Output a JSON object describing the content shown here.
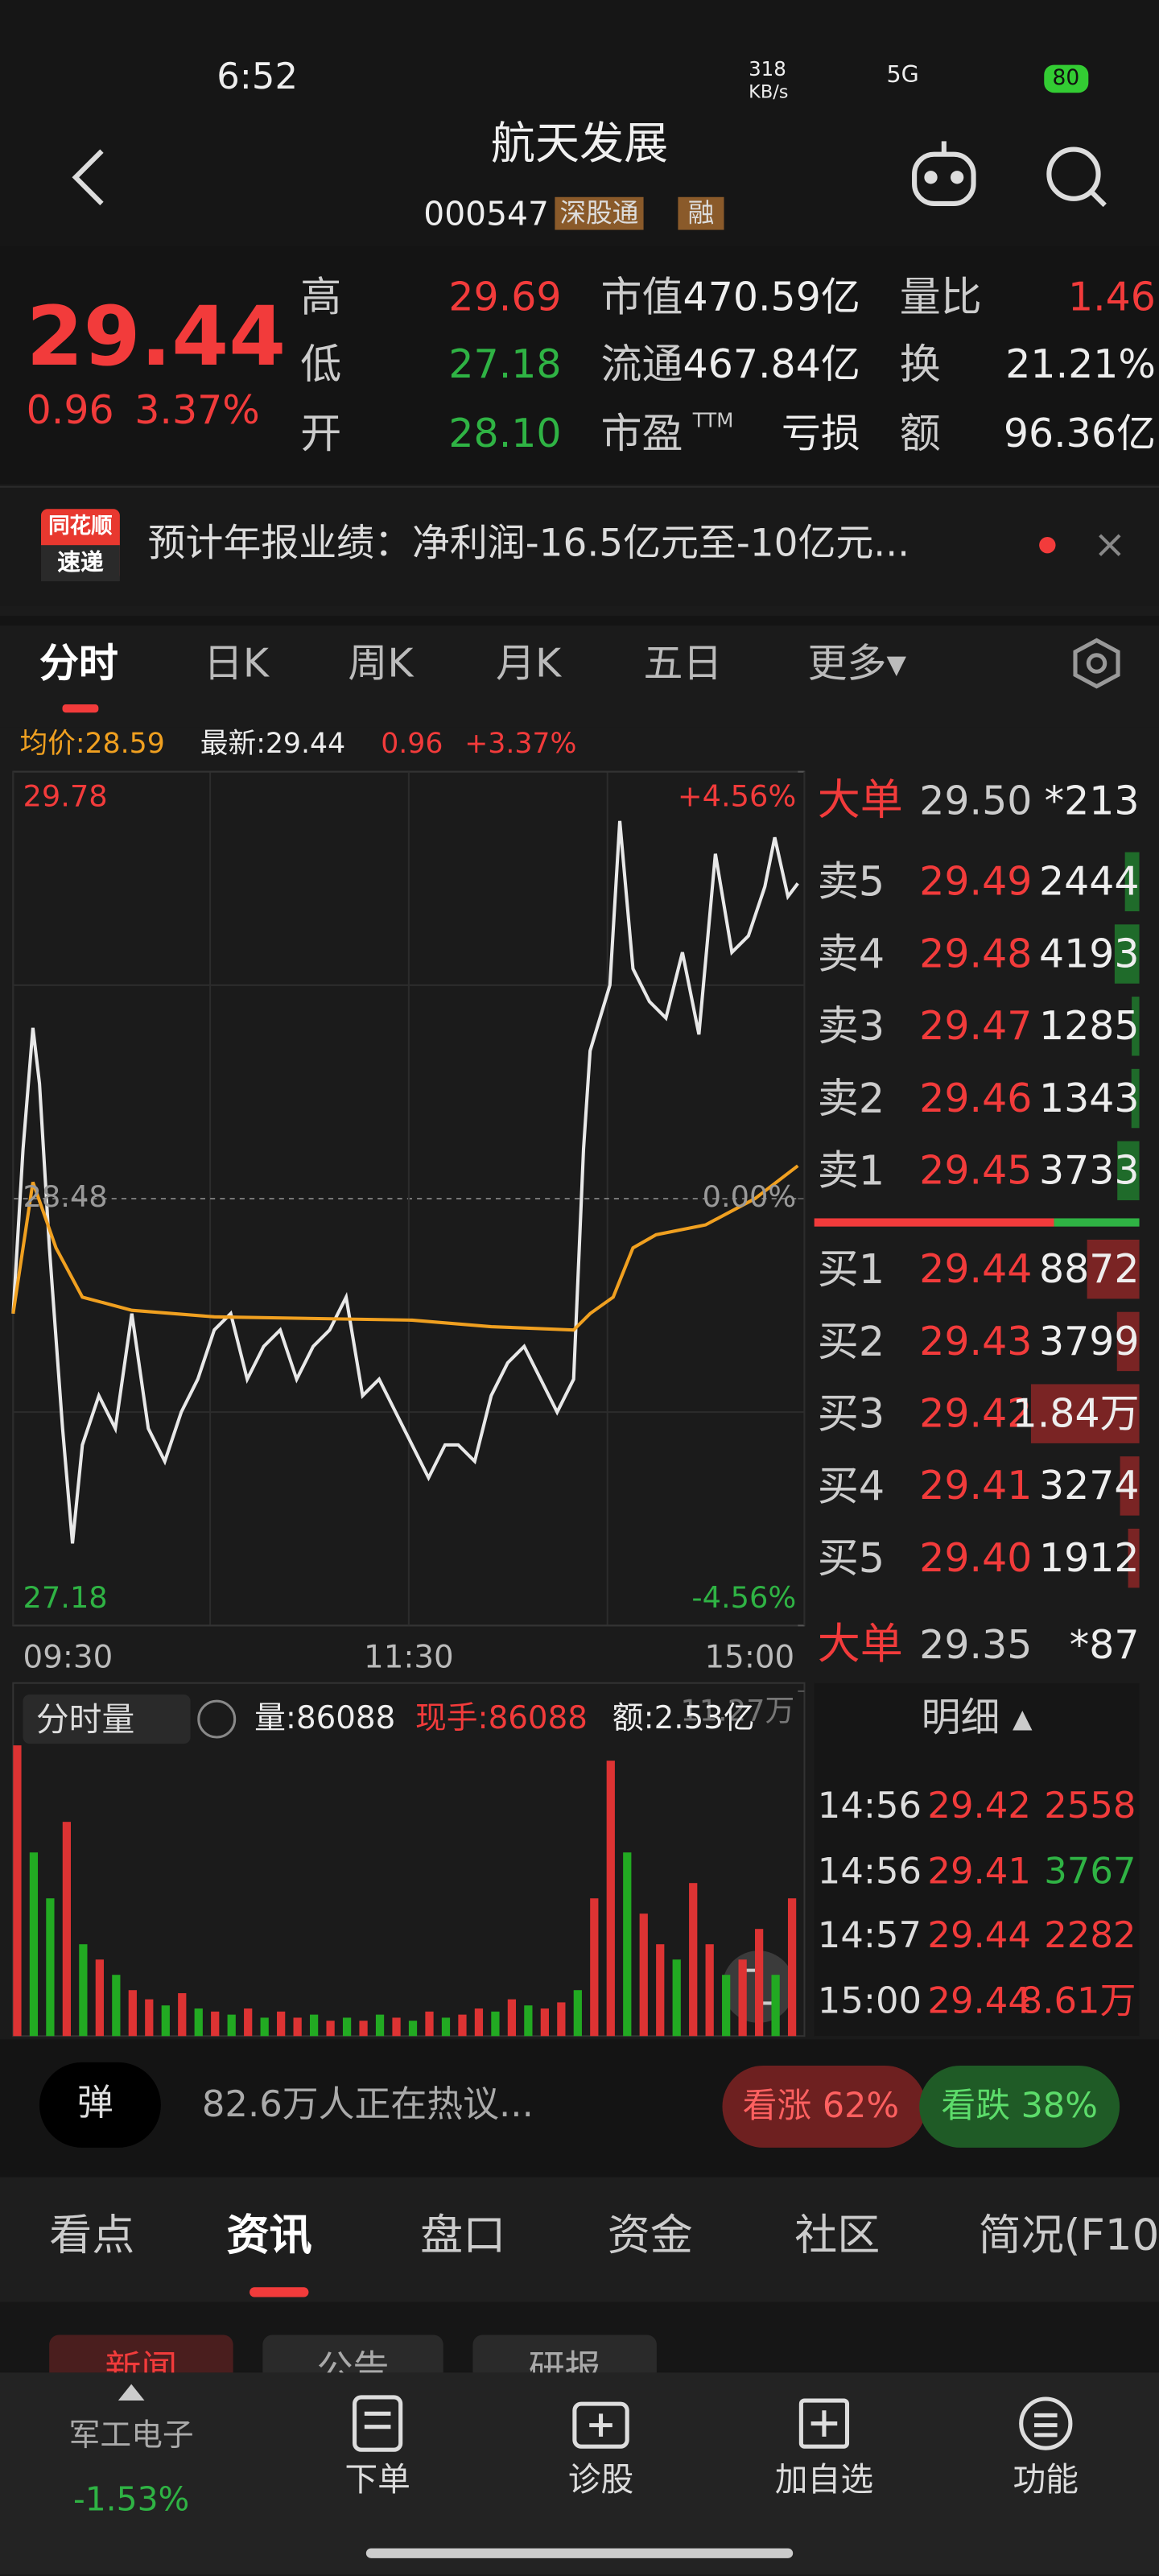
{
  "status_bar": {
    "time": "6:52",
    "speed": "318",
    "speed_unit": "KB/s",
    "network": "5G",
    "battery": "80"
  },
  "header": {
    "title": "航天发展",
    "code": "000547",
    "tags": [
      "深股通",
      "融"
    ]
  },
  "quote": {
    "price": "29.44",
    "change": "0.96",
    "change_pct": "3.37%",
    "stats": [
      [
        {
          "label": "高",
          "value": "29.69",
          "color": "#f23b3b"
        },
        {
          "label": "市值",
          "value": "470.59亿"
        },
        {
          "label": "量比",
          "value": "1.46",
          "color": "#f23b3b"
        }
      ],
      [
        {
          "label": "低",
          "value": "27.18",
          "color": "#2fb344"
        },
        {
          "label": "流通",
          "value": "467.84亿"
        },
        {
          "label": "换",
          "value": "21.21%"
        }
      ],
      [
        {
          "label": "开",
          "value": "28.10",
          "color": "#2fb344"
        },
        {
          "label": "市盈",
          "sup": "TTM",
          "value": "亏损"
        },
        {
          "label": "额",
          "value": "96.36亿"
        }
      ]
    ]
  },
  "news": {
    "badge_top": "同花顺",
    "badge_bottom": "速递",
    "text": "预计年报业绩：净利润-16.5亿元至-10亿元..."
  },
  "chart_tabs": [
    "分时",
    "日K",
    "周K",
    "月K",
    "五日",
    "更多▾"
  ],
  "summary": {
    "avg": "均价:28.59",
    "latest": "最新:29.44",
    "change": "0.96",
    "change_pct": "+3.37%"
  },
  "chart_data": [
    {
      "type": "line",
      "series": [
        {
          "color": "#e8e8e8",
          "x": [
            0,
            3,
            6,
            8,
            11,
            15,
            18,
            21,
            26,
            31,
            36,
            41,
            46,
            51,
            56,
            61,
            66,
            71,
            76,
            81,
            86,
            91,
            96,
            101,
            106,
            111,
            116,
            121,
            126,
            131,
            135,
            140,
            145,
            150,
            155,
            160,
            165,
            170,
            173,
            175,
            178,
            181,
            184,
            188,
            193,
            198,
            203,
            208,
            213,
            218,
            223,
            228,
            231,
            235,
            238
          ],
          "values": [
            28.13,
            28.63,
            29.0,
            28.83,
            28.33,
            27.78,
            27.43,
            27.73,
            27.88,
            27.78,
            28.13,
            27.78,
            27.68,
            27.83,
            27.93,
            28.08,
            28.13,
            27.93,
            28.03,
            28.08,
            27.93,
            28.03,
            28.08,
            28.18,
            27.88,
            27.93,
            27.83,
            27.73,
            27.63,
            27.73,
            27.73,
            27.68,
            27.88,
            27.98,
            28.03,
            27.93,
            27.83,
            27.93,
            28.63,
            28.93,
            29.03,
            29.13,
            29.63,
            29.18,
            29.08,
            29.03,
            29.23,
            28.98,
            29.53,
            29.23,
            29.28,
            29.43,
            29.58,
            29.4,
            29.44
          ]
        },
        {
          "color": "#f0a020",
          "x": [
            0,
            6,
            13,
            21,
            36,
            61,
            121,
            145,
            170,
            175,
            182,
            188,
            195,
            210,
            225,
            238
          ],
          "values": [
            28.13,
            28.53,
            28.33,
            28.18,
            28.14,
            28.12,
            28.11,
            28.09,
            28.08,
            28.13,
            28.18,
            28.33,
            28.37,
            28.4,
            28.48,
            28.58
          ]
        }
      ],
      "xlim": [
        0,
        240
      ],
      "xticks": [
        {
          "value": 0,
          "label": "09:30"
        },
        {
          "value": 120,
          "label": "11:30"
        },
        {
          "value": 240,
          "label": "15:00"
        }
      ],
      "ylim": [
        27.18,
        29.78
      ],
      "yticks": [
        29.78,
        28.48,
        27.18
      ],
      "y2lim": [
        -4.56,
        4.56
      ],
      "y2ticks": [
        {
          "value": 4.56,
          "label": "+4.56%"
        },
        {
          "value": 0,
          "label": "0.00%"
        },
        {
          "value": -4.56,
          "label": "-4.56%"
        }
      ]
    },
    {
      "type": "bar",
      "title": "分时量",
      "volume": "量:86088",
      "last_volume": "现手:86088",
      "amount": "额:2.53亿",
      "x": [
        0,
        5,
        10,
        15,
        20,
        25,
        30,
        35,
        40,
        45,
        50,
        55,
        60,
        65,
        70,
        75,
        80,
        85,
        90,
        95,
        100,
        105,
        110,
        115,
        120,
        125,
        130,
        135,
        140,
        145,
        150,
        155,
        160,
        165,
        170,
        175,
        180,
        185,
        190,
        195,
        200,
        205,
        210,
        215,
        220,
        225,
        230,
        235
      ],
      "values": [
        95000,
        60000,
        45000,
        70000,
        30000,
        25000,
        20000,
        15000,
        12000,
        10000,
        14000,
        9000,
        8000,
        7000,
        9000,
        6000,
        8000,
        6000,
        7000,
        5000,
        6000,
        5000,
        7000,
        6000,
        5000,
        8000,
        6000,
        7000,
        9000,
        8000,
        12000,
        10000,
        9000,
        11000,
        15000,
        45000,
        90000,
        60000,
        40000,
        30000,
        25000,
        50000,
        30000,
        20000,
        25000,
        35000,
        20000,
        45000
      ],
      "colors": [
        "#d33",
        "#2a2",
        "#2a2",
        "#d33",
        "#2a2",
        "#d33",
        "#2a2",
        "#d33",
        "#d33",
        "#2a2",
        "#d33",
        "#2a2",
        "#d33",
        "#2a2",
        "#d33",
        "#2a2",
        "#d33",
        "#d33",
        "#2a2",
        "#d33",
        "#2a2",
        "#d33",
        "#2a2",
        "#d33",
        "#2a2",
        "#d33",
        "#2a2",
        "#d33",
        "#d33",
        "#2a2",
        "#d33",
        "#2a2",
        "#d33",
        "#d33",
        "#2a2",
        "#d33",
        "#d33",
        "#2a2",
        "#d33",
        "#d33",
        "#2a2",
        "#d33",
        "#d33",
        "#2a2",
        "#d33",
        "#d33",
        "#2a2",
        "#d33"
      ],
      "ylim": [
        0,
        112700
      ],
      "yticks": [
        {
          "value": 112700,
          "label": "11.27万"
        }
      ]
    }
  ],
  "order_book": {
    "big_sell": {
      "label": "大单",
      "price": "29.50",
      "count": "*213"
    },
    "asks": [
      {
        "label": "卖5",
        "price": "29.49",
        "volume": 2444
      },
      {
        "label": "卖4",
        "price": "29.48",
        "volume": 4193
      },
      {
        "label": "卖3",
        "price": "29.47",
        "volume": 1285
      },
      {
        "label": "卖2",
        "price": "29.46",
        "volume": 1343
      },
      {
        "label": "卖1",
        "price": "29.45",
        "volume": 3733
      }
    ],
    "bids": [
      {
        "label": "买1",
        "price": "29.44",
        "volume": 8872
      },
      {
        "label": "买2",
        "price": "29.43",
        "volume": 3799
      },
      {
        "label": "买3",
        "price": "29.42",
        "volume": {
          "value": 18400,
          "label": "1.84万"
        }
      },
      {
        "label": "买4",
        "price": "29.41",
        "volume": 3274
      },
      {
        "label": "买5",
        "price": "29.40",
        "volume": 1912
      }
    ],
    "big_buy": {
      "label": "大单",
      "price": "29.35",
      "count": "*87"
    }
  },
  "detail": {
    "title": "明细 ▴",
    "rows": [
      {
        "time": "14:56",
        "price": "29.42",
        "volume": "2558",
        "color": "#f23b3b"
      },
      {
        "time": "14:56",
        "price": "29.41",
        "volume": "3767",
        "color": "#2fb344"
      },
      {
        "time": "14:57",
        "price": "29.44",
        "volume": "2282",
        "color": "#f23b3b"
      },
      {
        "time": "15:00",
        "price": "29.44",
        "volume": "8.61万",
        "color": "#f23b3b"
      }
    ]
  },
  "community": {
    "toggle": "弹",
    "text": "82.6万人正在热议...",
    "bullish": "看涨 62%",
    "bearish": "看跌 38%"
  },
  "info_tabs": [
    "看点",
    "资讯",
    "盘口",
    "资金",
    "社区",
    "简况(F10"
  ],
  "sub_tabs": [
    "新闻",
    "公告",
    "研报"
  ],
  "nav": {
    "sector": "军工电子",
    "sector_change": "-1.53%",
    "items": [
      "下单",
      "诊股",
      "加自选",
      "功能"
    ]
  }
}
